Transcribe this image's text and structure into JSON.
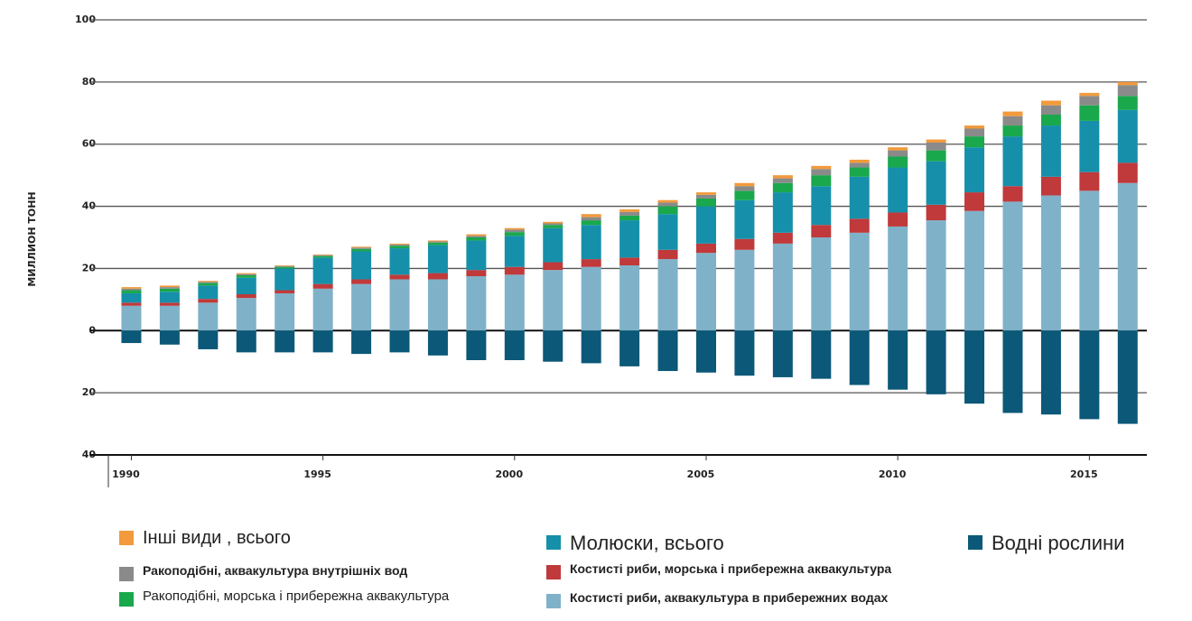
{
  "chart_data": {
    "type": "bar",
    "stacked": true,
    "ylabel": "МИЛЛИОН ТОНН",
    "x": [
      1990,
      1991,
      1992,
      1993,
      1994,
      1995,
      1996,
      1997,
      1998,
      1999,
      2000,
      2001,
      2002,
      2003,
      2004,
      2005,
      2006,
      2007,
      2008,
      2009,
      2010,
      2011,
      2012,
      2013,
      2014,
      2015,
      2016
    ],
    "xlim": [
      1989.4,
      2016.5
    ],
    "xticks": [
      1990,
      1995,
      2000,
      2005,
      2010,
      2015
    ],
    "ylim": [
      -40,
      100
    ],
    "yticks": [
      {
        "value": -40,
        "label": "40"
      },
      {
        "value": -20,
        "label": "20"
      },
      0,
      20,
      40,
      60,
      80,
      100
    ],
    "grid": true,
    "series": [
      {
        "name": "Костисті риби, аквакультура в прибережних водах",
        "color": "#7fb2c9",
        "values": [
          8,
          8,
          9,
          10.5,
          12,
          13.5,
          15,
          16.5,
          16.5,
          17.5,
          18,
          19.5,
          20.5,
          21,
          23,
          25,
          26,
          28,
          30,
          31.5,
          33.5,
          35.5,
          38.5,
          41.5,
          43.5,
          45,
          47.5
        ]
      },
      {
        "name": "Костисті риби, морська і прибережна аквакультура",
        "color": "#c0393b",
        "values": [
          1,
          1,
          1.2,
          1.2,
          1,
          1.5,
          1.5,
          1.5,
          2,
          2,
          2.5,
          2.5,
          2.5,
          2.5,
          3,
          3,
          3.5,
          3.5,
          4,
          4.5,
          4.5,
          5,
          6,
          5,
          6,
          6,
          6.5
        ]
      },
      {
        "name": "Молюски, всього",
        "color": "#1690aa",
        "values": [
          3,
          3.5,
          4.3,
          5.3,
          7,
          8.5,
          9,
          8.5,
          9,
          9.5,
          10,
          11,
          11,
          12,
          11.5,
          12,
          12.5,
          13,
          12.5,
          13.5,
          14.5,
          14,
          14.5,
          16,
          16.5,
          16.5,
          17
        ]
      },
      {
        "name": "Ракоподібні, морська і прибережна аквакультура",
        "color": "#1aa84c",
        "values": [
          1,
          1,
          0.8,
          0.8,
          0.5,
          0.5,
          0.8,
          0.8,
          0.8,
          1,
          1.2,
          1,
          1.5,
          1.5,
          2.5,
          2.5,
          3,
          3,
          3.5,
          3,
          3.5,
          3.5,
          3.5,
          3.5,
          3.5,
          5,
          4.5
        ]
      },
      {
        "name": "Ракоподібні, аквакультура внутрішніх вод",
        "color": "#8a8a8a",
        "values": [
          0.5,
          0.5,
          0.4,
          0.4,
          0.3,
          0.3,
          0.4,
          0.4,
          0.4,
          0.5,
          0.8,
          0.5,
          1,
          1.2,
          1.2,
          1.2,
          1.5,
          1.5,
          2,
          1.5,
          2,
          2.5,
          2.5,
          3,
          3,
          3,
          3.5
        ]
      },
      {
        "name": "Інші види , всього",
        "color": "#f29a3c",
        "values": [
          0.5,
          0.5,
          0.3,
          0.3,
          0.2,
          0.2,
          0.3,
          0.3,
          0.3,
          0.5,
          0.5,
          0.5,
          1,
          0.8,
          0.8,
          0.8,
          1,
          1,
          1,
          1,
          1,
          1,
          1,
          1.5,
          1.5,
          1,
          1
        ]
      },
      {
        "name": "Водні рослини",
        "color": "#0b5878",
        "values": [
          -4,
          -4.5,
          -6,
          -7,
          -7,
          -7,
          -7.5,
          -7,
          -8,
          -9.5,
          -9.5,
          -10,
          -10.5,
          -11.5,
          -13,
          -13.5,
          -14.5,
          -15,
          -15.5,
          -17.5,
          -19,
          -20.5,
          -23.5,
          -26.5,
          -27,
          -28.5,
          -30
        ]
      }
    ]
  }
}
